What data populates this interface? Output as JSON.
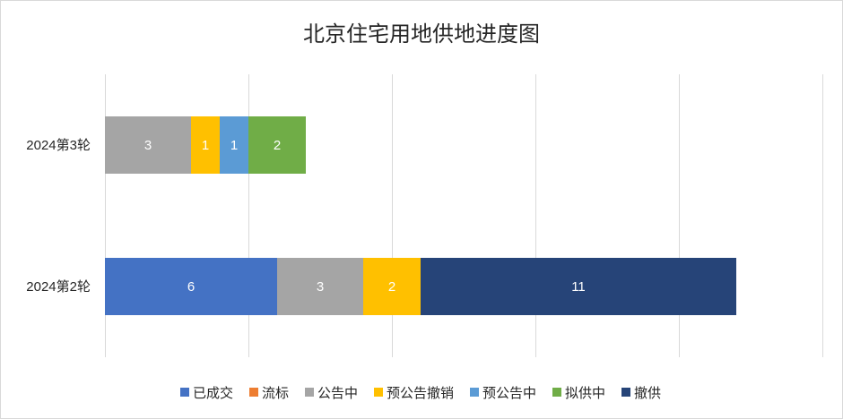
{
  "chart_data": {
    "type": "bar",
    "orientation": "horizontal",
    "stacked": true,
    "title": "北京住宅用地供地进度图",
    "categories": [
      "2024第3轮",
      "2024第2轮"
    ],
    "series": [
      {
        "name": "已成交",
        "color": "#4472C4",
        "values": [
          0,
          6
        ]
      },
      {
        "name": "流标",
        "color": "#ED7D31",
        "values": [
          0,
          0
        ]
      },
      {
        "name": "公告中",
        "color": "#A5A5A5",
        "values": [
          3,
          3
        ]
      },
      {
        "name": "预公告撤销",
        "color": "#FFC000",
        "values": [
          1,
          2
        ]
      },
      {
        "name": "预公告中",
        "color": "#5B9BD5",
        "values": [
          1,
          0
        ]
      },
      {
        "name": "拟供中",
        "color": "#70AD47",
        "values": [
          2,
          0
        ]
      },
      {
        "name": "撤供",
        "color": "#264478",
        "values": [
          0,
          11
        ]
      }
    ],
    "xlim": [
      0,
      25
    ],
    "grid": true,
    "legend_position": "bottom"
  }
}
